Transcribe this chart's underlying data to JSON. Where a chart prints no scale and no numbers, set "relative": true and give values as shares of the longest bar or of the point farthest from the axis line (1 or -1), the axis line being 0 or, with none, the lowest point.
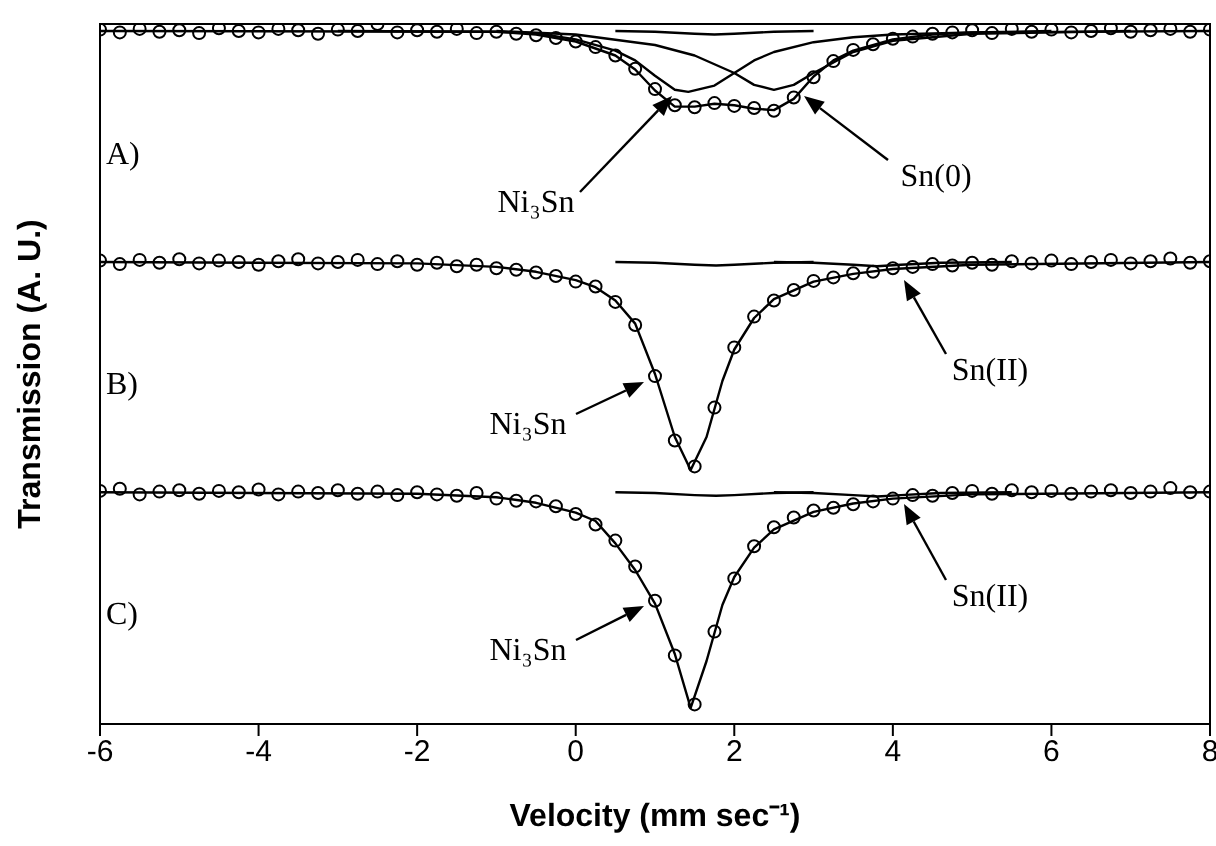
{
  "chart_data": {
    "type": "line",
    "relative": true,
    "xlabel": "Velocity (mm sec⁻¹)",
    "ylabel": "Transmission (A. U.)",
    "xlim": [
      -6,
      8
    ],
    "xticks": [
      -6,
      -4,
      -2,
      0,
      2,
      4,
      6,
      8
    ],
    "line_style": "solid",
    "x": [
      -6,
      -5.75,
      -5.5,
      -5.25,
      -5,
      -4.75,
      -4.5,
      -4.25,
      -4,
      -3.75,
      -3.5,
      -3.25,
      -3,
      -2.75,
      -2.5,
      -2.25,
      -2,
      -1.75,
      -1.5,
      -1.25,
      -1,
      -0.75,
      -0.5,
      -0.25,
      0,
      0.25,
      0.5,
      0.75,
      1,
      1.25,
      1.5,
      1.75,
      2,
      2.25,
      2.5,
      2.75,
      3,
      3.25,
      3.5,
      3.75,
      4,
      4.25,
      4.5,
      4.75,
      5,
      5.25,
      5.5,
      5.75,
      6,
      6.25,
      6.5,
      6.75,
      7,
      7.25,
      7.5,
      7.75,
      8
    ],
    "series": [
      {
        "color": "#000000",
        "x": [
          -6,
          -1,
          -0.5,
          0,
          0.5,
          0.75,
          1,
          1.25,
          1.5,
          1.75,
          2,
          2.25,
          2.5,
          2.75,
          3,
          3.25,
          3.5,
          4,
          4.5,
          5,
          8
        ],
        "values": [
          0.99,
          0.989,
          0.985,
          0.975,
          0.955,
          0.935,
          0.905,
          0.882,
          0.882,
          0.886,
          0.884,
          0.879,
          0.877,
          0.893,
          0.925,
          0.948,
          0.962,
          0.978,
          0.985,
          0.988,
          0.99
        ]
      },
      {
        "color": "#000000",
        "x": [
          -3,
          -1,
          -0.5,
          0,
          0.5,
          0.75,
          1,
          1.25,
          1.42,
          1.75,
          2,
          2.25,
          2.5,
          3,
          3.5,
          4,
          5,
          6
        ],
        "values": [
          0.99,
          0.989,
          0.987,
          0.978,
          0.962,
          0.948,
          0.926,
          0.906,
          0.903,
          0.912,
          0.93,
          0.948,
          0.96,
          0.974,
          0.981,
          0.985,
          0.988,
          0.99
        ]
      },
      {
        "color": "#000000",
        "x": [
          -1,
          0,
          1,
          1.5,
          2,
          2.25,
          2.5,
          2.75,
          3,
          3.5,
          4,
          5,
          7
        ],
        "values": [
          0.99,
          0.985,
          0.97,
          0.955,
          0.93,
          0.913,
          0.906,
          0.913,
          0.93,
          0.96,
          0.976,
          0.986,
          0.99
        ]
      },
      {
        "color": "#000000",
        "x": [
          0.5,
          1,
          1.5,
          1.75,
          2,
          2.5,
          3
        ],
        "values": [
          0.99,
          0.989,
          0.986,
          0.985,
          0.986,
          0.989,
          0.99
        ]
      },
      {
        "color": "#000000",
        "x": [
          -6,
          -2,
          -1,
          -0.5,
          0,
          0.25,
          0.5,
          0.75,
          1,
          1.25,
          1.45,
          1.65,
          1.85,
          2,
          2.25,
          2.5,
          3,
          3.5,
          4,
          5,
          8
        ],
        "values": [
          0.66,
          0.658,
          0.653,
          0.646,
          0.634,
          0.624,
          0.605,
          0.572,
          0.5,
          0.41,
          0.363,
          0.41,
          0.49,
          0.535,
          0.58,
          0.607,
          0.632,
          0.643,
          0.65,
          0.656,
          0.66
        ]
      },
      {
        "color": "#000000",
        "x": [
          0.5,
          1,
          1.5,
          1.77,
          2,
          2.5,
          3
        ],
        "values": [
          0.66,
          0.659,
          0.656,
          0.655,
          0.656,
          0.659,
          0.66
        ]
      },
      {
        "color": "#000000",
        "x": [
          2.5,
          3,
          3.5,
          3.8,
          4.1,
          4.6,
          5.5
        ],
        "values": [
          0.66,
          0.659,
          0.656,
          0.654,
          0.656,
          0.659,
          0.66
        ]
      },
      {
        "color": "#000000",
        "x": [
          -6,
          -2,
          -1,
          -0.5,
          0,
          0.25,
          0.5,
          0.75,
          1,
          1.25,
          1.45,
          1.65,
          1.85,
          2,
          2.25,
          2.5,
          3,
          3.5,
          4,
          5,
          8
        ],
        "values": [
          0.331,
          0.329,
          0.324,
          0.316,
          0.302,
          0.29,
          0.258,
          0.22,
          0.172,
          0.1,
          0.023,
          0.09,
          0.17,
          0.21,
          0.252,
          0.278,
          0.303,
          0.315,
          0.322,
          0.328,
          0.331
        ]
      },
      {
        "color": "#000000",
        "x": [
          0.5,
          1,
          1.5,
          1.77,
          2,
          2.5,
          3
        ],
        "values": [
          0.331,
          0.33,
          0.327,
          0.326,
          0.327,
          0.33,
          0.331
        ]
      },
      {
        "color": "#000000",
        "x": [
          2.5,
          3,
          3.5,
          3.8,
          4.1,
          4.6,
          5.5
        ],
        "values": [
          0.331,
          0.33,
          0.327,
          0.325,
          0.327,
          0.33,
          0.331
        ]
      },
      {
        "type": "scatter",
        "marker": "circle",
        "color": "#000000",
        "values": [
          0.992,
          0.988,
          0.993,
          0.989,
          0.991,
          0.987,
          0.994,
          0.99,
          0.988,
          0.993,
          0.991,
          0.986,
          0.992,
          0.99,
          1.0,
          0.988,
          0.991,
          0.989,
          0.993,
          0.987,
          0.989,
          0.986,
          0.984,
          0.98,
          0.975,
          0.967,
          0.955,
          0.936,
          0.907,
          0.884,
          0.881,
          0.887,
          0.883,
          0.88,
          0.876,
          0.895,
          0.924,
          0.947,
          0.963,
          0.971,
          0.979,
          0.982,
          0.986,
          0.988,
          0.991,
          0.987,
          0.993,
          0.989,
          0.992,
          0.988,
          0.99,
          0.994,
          0.989,
          0.991,
          0.993,
          0.989,
          0.992
        ]
      },
      {
        "type": "scatter",
        "marker": "circle",
        "color": "#000000",
        "values": [
          0.662,
          0.657,
          0.663,
          0.659,
          0.664,
          0.658,
          0.662,
          0.66,
          0.656,
          0.661,
          0.664,
          0.658,
          0.66,
          0.663,
          0.657,
          0.661,
          0.656,
          0.659,
          0.654,
          0.656,
          0.651,
          0.649,
          0.645,
          0.64,
          0.632,
          0.625,
          0.603,
          0.57,
          0.497,
          0.405,
          0.368,
          0.452,
          0.538,
          0.582,
          0.605,
          0.62,
          0.633,
          0.638,
          0.644,
          0.646,
          0.651,
          0.653,
          0.657,
          0.655,
          0.659,
          0.656,
          0.661,
          0.658,
          0.662,
          0.657,
          0.66,
          0.663,
          0.658,
          0.661,
          0.665,
          0.659,
          0.661
        ]
      },
      {
        "type": "scatter",
        "marker": "circle",
        "color": "#000000",
        "values": [
          0.333,
          0.336,
          0.328,
          0.332,
          0.334,
          0.329,
          0.333,
          0.331,
          0.335,
          0.328,
          0.332,
          0.33,
          0.334,
          0.329,
          0.332,
          0.327,
          0.331,
          0.328,
          0.326,
          0.33,
          0.322,
          0.319,
          0.318,
          0.311,
          0.3,
          0.285,
          0.262,
          0.225,
          0.176,
          0.098,
          0.028,
          0.132,
          0.208,
          0.254,
          0.281,
          0.295,
          0.305,
          0.309,
          0.314,
          0.318,
          0.322,
          0.327,
          0.326,
          0.33,
          0.333,
          0.329,
          0.334,
          0.331,
          0.333,
          0.329,
          0.332,
          0.334,
          0.33,
          0.332,
          0.337,
          0.331,
          0.332
        ]
      }
    ],
    "annotations": [
      "A)",
      "B)",
      "C)",
      "Ni₃Sn",
      "Sn(0)",
      "Ni₃Sn",
      "Sn(II)",
      "Ni₃Sn",
      "Sn(II)"
    ]
  }
}
